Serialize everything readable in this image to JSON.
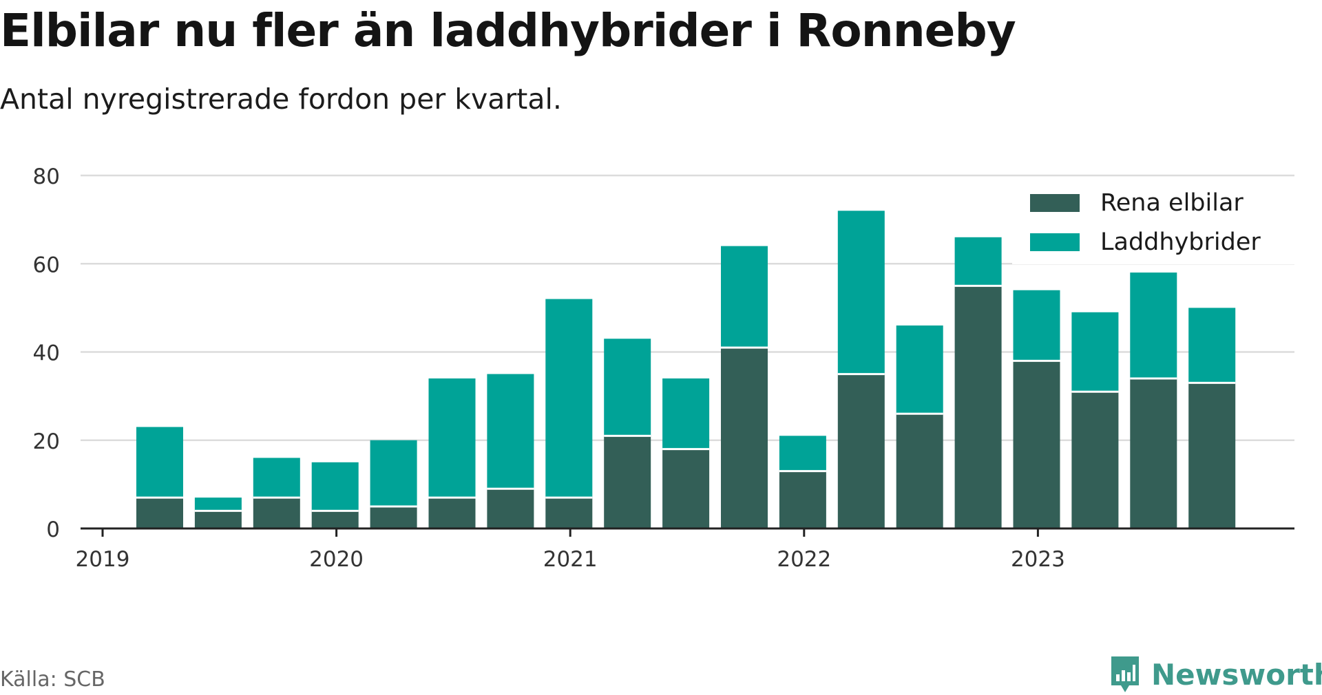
{
  "title": "Elbilar nu fler än laddhybrider i Ronneby",
  "subtitle": "Antal nyregistrerade fordon per kvartal.",
  "source": "Källa: SCB",
  "brand": {
    "name": "Newsworthy",
    "icon": "newsworthy-logo-icon"
  },
  "colors": {
    "rena": "#335f57",
    "ladd": "#00a397",
    "grid": "#dcdcdc",
    "axis": "#222222",
    "text": "#333333"
  },
  "chart_data": {
    "type": "bar",
    "stacked": true,
    "title": "Elbilar nu fler än laddhybrider i Ronneby",
    "xlabel": "",
    "ylabel": "",
    "ylim": [
      0,
      80
    ],
    "yticks": [
      "0",
      "20",
      "40",
      "60",
      "80"
    ],
    "xticks": [
      "2019",
      "2020",
      "2021",
      "2022",
      "2023"
    ],
    "categories": [
      "2019 Q2",
      "2019 Q3",
      "2019 Q4",
      "2020 Q1",
      "2020 Q2",
      "2020 Q3",
      "2020 Q4",
      "2021 Q1",
      "2021 Q2",
      "2021 Q3",
      "2021 Q4",
      "2022 Q1",
      "2022 Q2",
      "2022 Q3",
      "2022 Q4",
      "2023 Q1",
      "2023 Q2",
      "2023 Q3",
      "2023 Q4"
    ],
    "series": [
      {
        "name": "Rena elbilar",
        "values": [
          7,
          4,
          7,
          4,
          5,
          7,
          9,
          7,
          21,
          18,
          41,
          13,
          35,
          26,
          55,
          38,
          31,
          34,
          33
        ]
      },
      {
        "name": "Laddhybrider",
        "values": [
          16,
          3,
          9,
          11,
          15,
          27,
          26,
          45,
          22,
          16,
          23,
          8,
          37,
          20,
          11,
          16,
          18,
          24,
          17
        ]
      }
    ],
    "legend_position": "top-right",
    "grid": true
  }
}
